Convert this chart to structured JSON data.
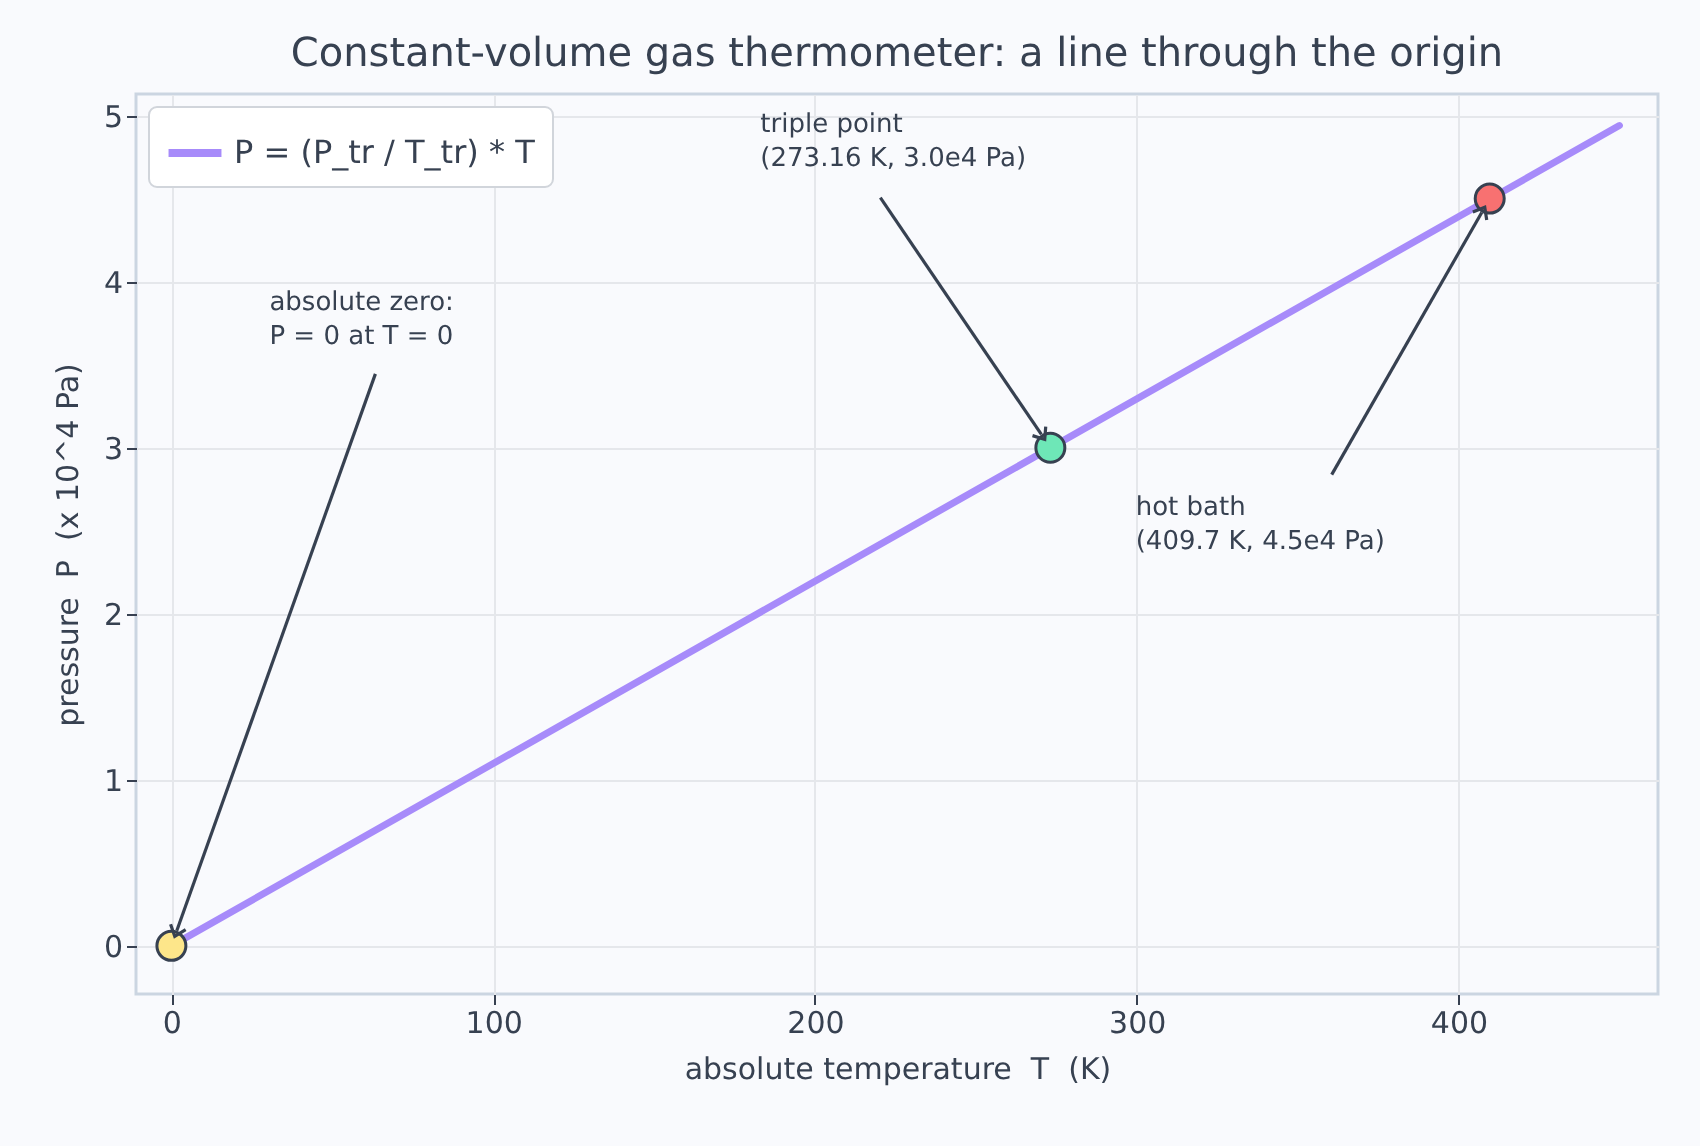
{
  "chart_data": {
    "type": "line",
    "title": "Constant-volume gas thermometer: a line through the origin",
    "xlabel": "absolute temperature  T  (K)",
    "ylabel": "pressure  P  (x 10^4 Pa)",
    "x": [
      0,
      450
    ],
    "series": [
      {
        "name": "P = (P_tr / T_tr) * T",
        "color": "#a78bfa",
        "values": [
          0,
          4.94
        ]
      },
      {
        "type": "scatter",
        "marker": "circle",
        "x": [
          0,
          273.16,
          409.7
        ],
        "values": [
          0,
          3.0,
          4.5
        ],
        "colors": [
          "#fde68a",
          "#6ee7b7",
          "#f87171"
        ]
      }
    ],
    "xlim": [
      -11,
      462
    ],
    "ylim": [
      -0.29,
      5.13
    ],
    "xticks": [
      0,
      100,
      200,
      300,
      400
    ],
    "yticks": [
      0,
      1,
      2,
      3,
      4,
      5
    ],
    "grid": true,
    "legend": "top left",
    "annotations": [
      {
        "text": "absolute zero:\nP = 0 at T = 0",
        "x": 0,
        "y": 0
      },
      {
        "text": "triple point\n(273.16 K, 3.0e4 Pa)",
        "x": 273.16,
        "y": 3.0
      },
      {
        "text": "hot bath\n(409.7 K, 4.5e4 Pa)",
        "x": 409.7,
        "y": 4.5
      }
    ]
  }
}
